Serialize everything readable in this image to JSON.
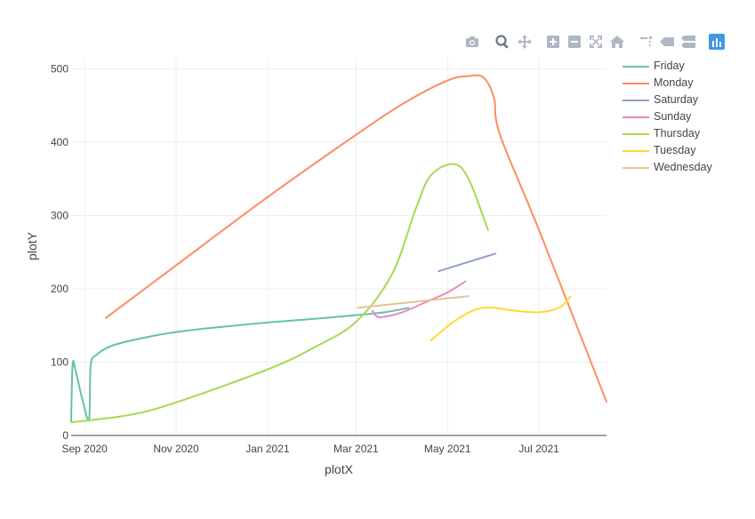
{
  "modebar": {
    "buttons": [
      {
        "name": "camera-icon",
        "active": false
      },
      {
        "name": "zoom-icon",
        "active": true
      },
      {
        "name": "pan-icon",
        "active": false
      },
      {
        "name": "zoom-in-icon",
        "active": false
      },
      {
        "name": "zoom-out-icon",
        "active": false
      },
      {
        "name": "autoscale-icon",
        "active": false
      },
      {
        "name": "home-icon",
        "active": false
      },
      {
        "name": "spike-lines-icon",
        "active": false
      },
      {
        "name": "hover-closest-icon",
        "active": false
      },
      {
        "name": "hover-compare-icon",
        "active": false
      },
      {
        "name": "plotly-logo-icon",
        "active": false
      }
    ],
    "icon_color": "#b0b7c4",
    "active_color": "#6a7584",
    "logo_color": "#3f98ea"
  },
  "chart_data": {
    "type": "line",
    "xlabel": "plotX",
    "ylabel": "plotY",
    "xlim": [
      "2020-08-23",
      "2021-08-15"
    ],
    "ylim": [
      0,
      515
    ],
    "x_ticks": [
      {
        "label": "Sep 2020",
        "date": "2020-09-01"
      },
      {
        "label": "Nov 2020",
        "date": "2020-11-01"
      },
      {
        "label": "Jan 2021",
        "date": "2021-01-01"
      },
      {
        "label": "Mar 2021",
        "date": "2021-03-01"
      },
      {
        "label": "May 2021",
        "date": "2021-05-01"
      },
      {
        "label": "Jul 2021",
        "date": "2021-07-01"
      }
    ],
    "y_ticks": [
      0,
      100,
      200,
      300,
      400,
      500
    ],
    "grid": true,
    "legend_position": "right",
    "series": [
      {
        "name": "Friday",
        "color": "#66c2a5",
        "points": [
          [
            "2020-08-23",
            20
          ],
          [
            "2020-08-24",
            97
          ],
          [
            "2020-08-26",
            88
          ],
          [
            "2020-08-31",
            45
          ],
          [
            "2020-09-04",
            22
          ],
          [
            "2020-09-05",
            95
          ],
          [
            "2020-09-09",
            110
          ],
          [
            "2020-09-20",
            123
          ],
          [
            "2020-10-10",
            133
          ],
          [
            "2020-11-01",
            141
          ],
          [
            "2020-12-01",
            148
          ],
          [
            "2021-01-01",
            154
          ],
          [
            "2021-02-01",
            159
          ],
          [
            "2021-03-01",
            164
          ],
          [
            "2021-03-20",
            168
          ],
          [
            "2021-04-05",
            174
          ]
        ]
      },
      {
        "name": "Monday",
        "color": "#fc8d62",
        "points": [
          [
            "2020-09-15",
            160
          ],
          [
            "2020-11-01",
            232
          ],
          [
            "2021-01-01",
            325
          ],
          [
            "2021-03-01",
            410
          ],
          [
            "2021-04-01",
            452
          ],
          [
            "2021-05-01",
            484
          ],
          [
            "2021-05-15",
            490
          ],
          [
            "2021-05-25",
            488
          ],
          [
            "2021-06-01",
            460
          ],
          [
            "2021-06-05",
            410
          ],
          [
            "2021-07-01",
            280
          ],
          [
            "2021-08-15",
            46
          ]
        ]
      },
      {
        "name": "Saturday",
        "color": "#8da0cb",
        "points": [
          [
            "2021-04-25",
            224
          ],
          [
            "2021-06-02",
            248
          ]
        ]
      },
      {
        "name": "Sunday",
        "color": "#e78ac3",
        "points": [
          [
            "2021-03-12",
            170
          ],
          [
            "2021-03-15",
            162
          ],
          [
            "2021-03-20",
            162
          ],
          [
            "2021-04-01",
            168
          ],
          [
            "2021-04-20",
            185
          ],
          [
            "2021-05-01",
            195
          ],
          [
            "2021-05-13",
            210
          ]
        ]
      },
      {
        "name": "Thursday",
        "color": "#a6d854",
        "points": [
          [
            "2020-08-23",
            18
          ],
          [
            "2020-10-01",
            28
          ],
          [
            "2020-11-01",
            45
          ],
          [
            "2021-01-01",
            90
          ],
          [
            "2021-02-01",
            120
          ],
          [
            "2021-03-01",
            155
          ],
          [
            "2021-03-25",
            220
          ],
          [
            "2021-04-10",
            310
          ],
          [
            "2021-04-20",
            355
          ],
          [
            "2021-05-05",
            370
          ],
          [
            "2021-05-15",
            350
          ],
          [
            "2021-05-28",
            280
          ]
        ]
      },
      {
        "name": "Tuesday",
        "color": "#ffd92f",
        "points": [
          [
            "2021-04-20",
            130
          ],
          [
            "2021-05-05",
            155
          ],
          [
            "2021-05-20",
            172
          ],
          [
            "2021-06-01",
            174
          ],
          [
            "2021-06-15",
            170
          ],
          [
            "2021-07-01",
            168
          ],
          [
            "2021-07-15",
            175
          ],
          [
            "2021-07-22",
            190
          ]
        ]
      },
      {
        "name": "Wednesday",
        "color": "#e5c494",
        "points": [
          [
            "2021-03-02",
            174
          ],
          [
            "2021-05-15",
            190
          ]
        ]
      }
    ]
  }
}
